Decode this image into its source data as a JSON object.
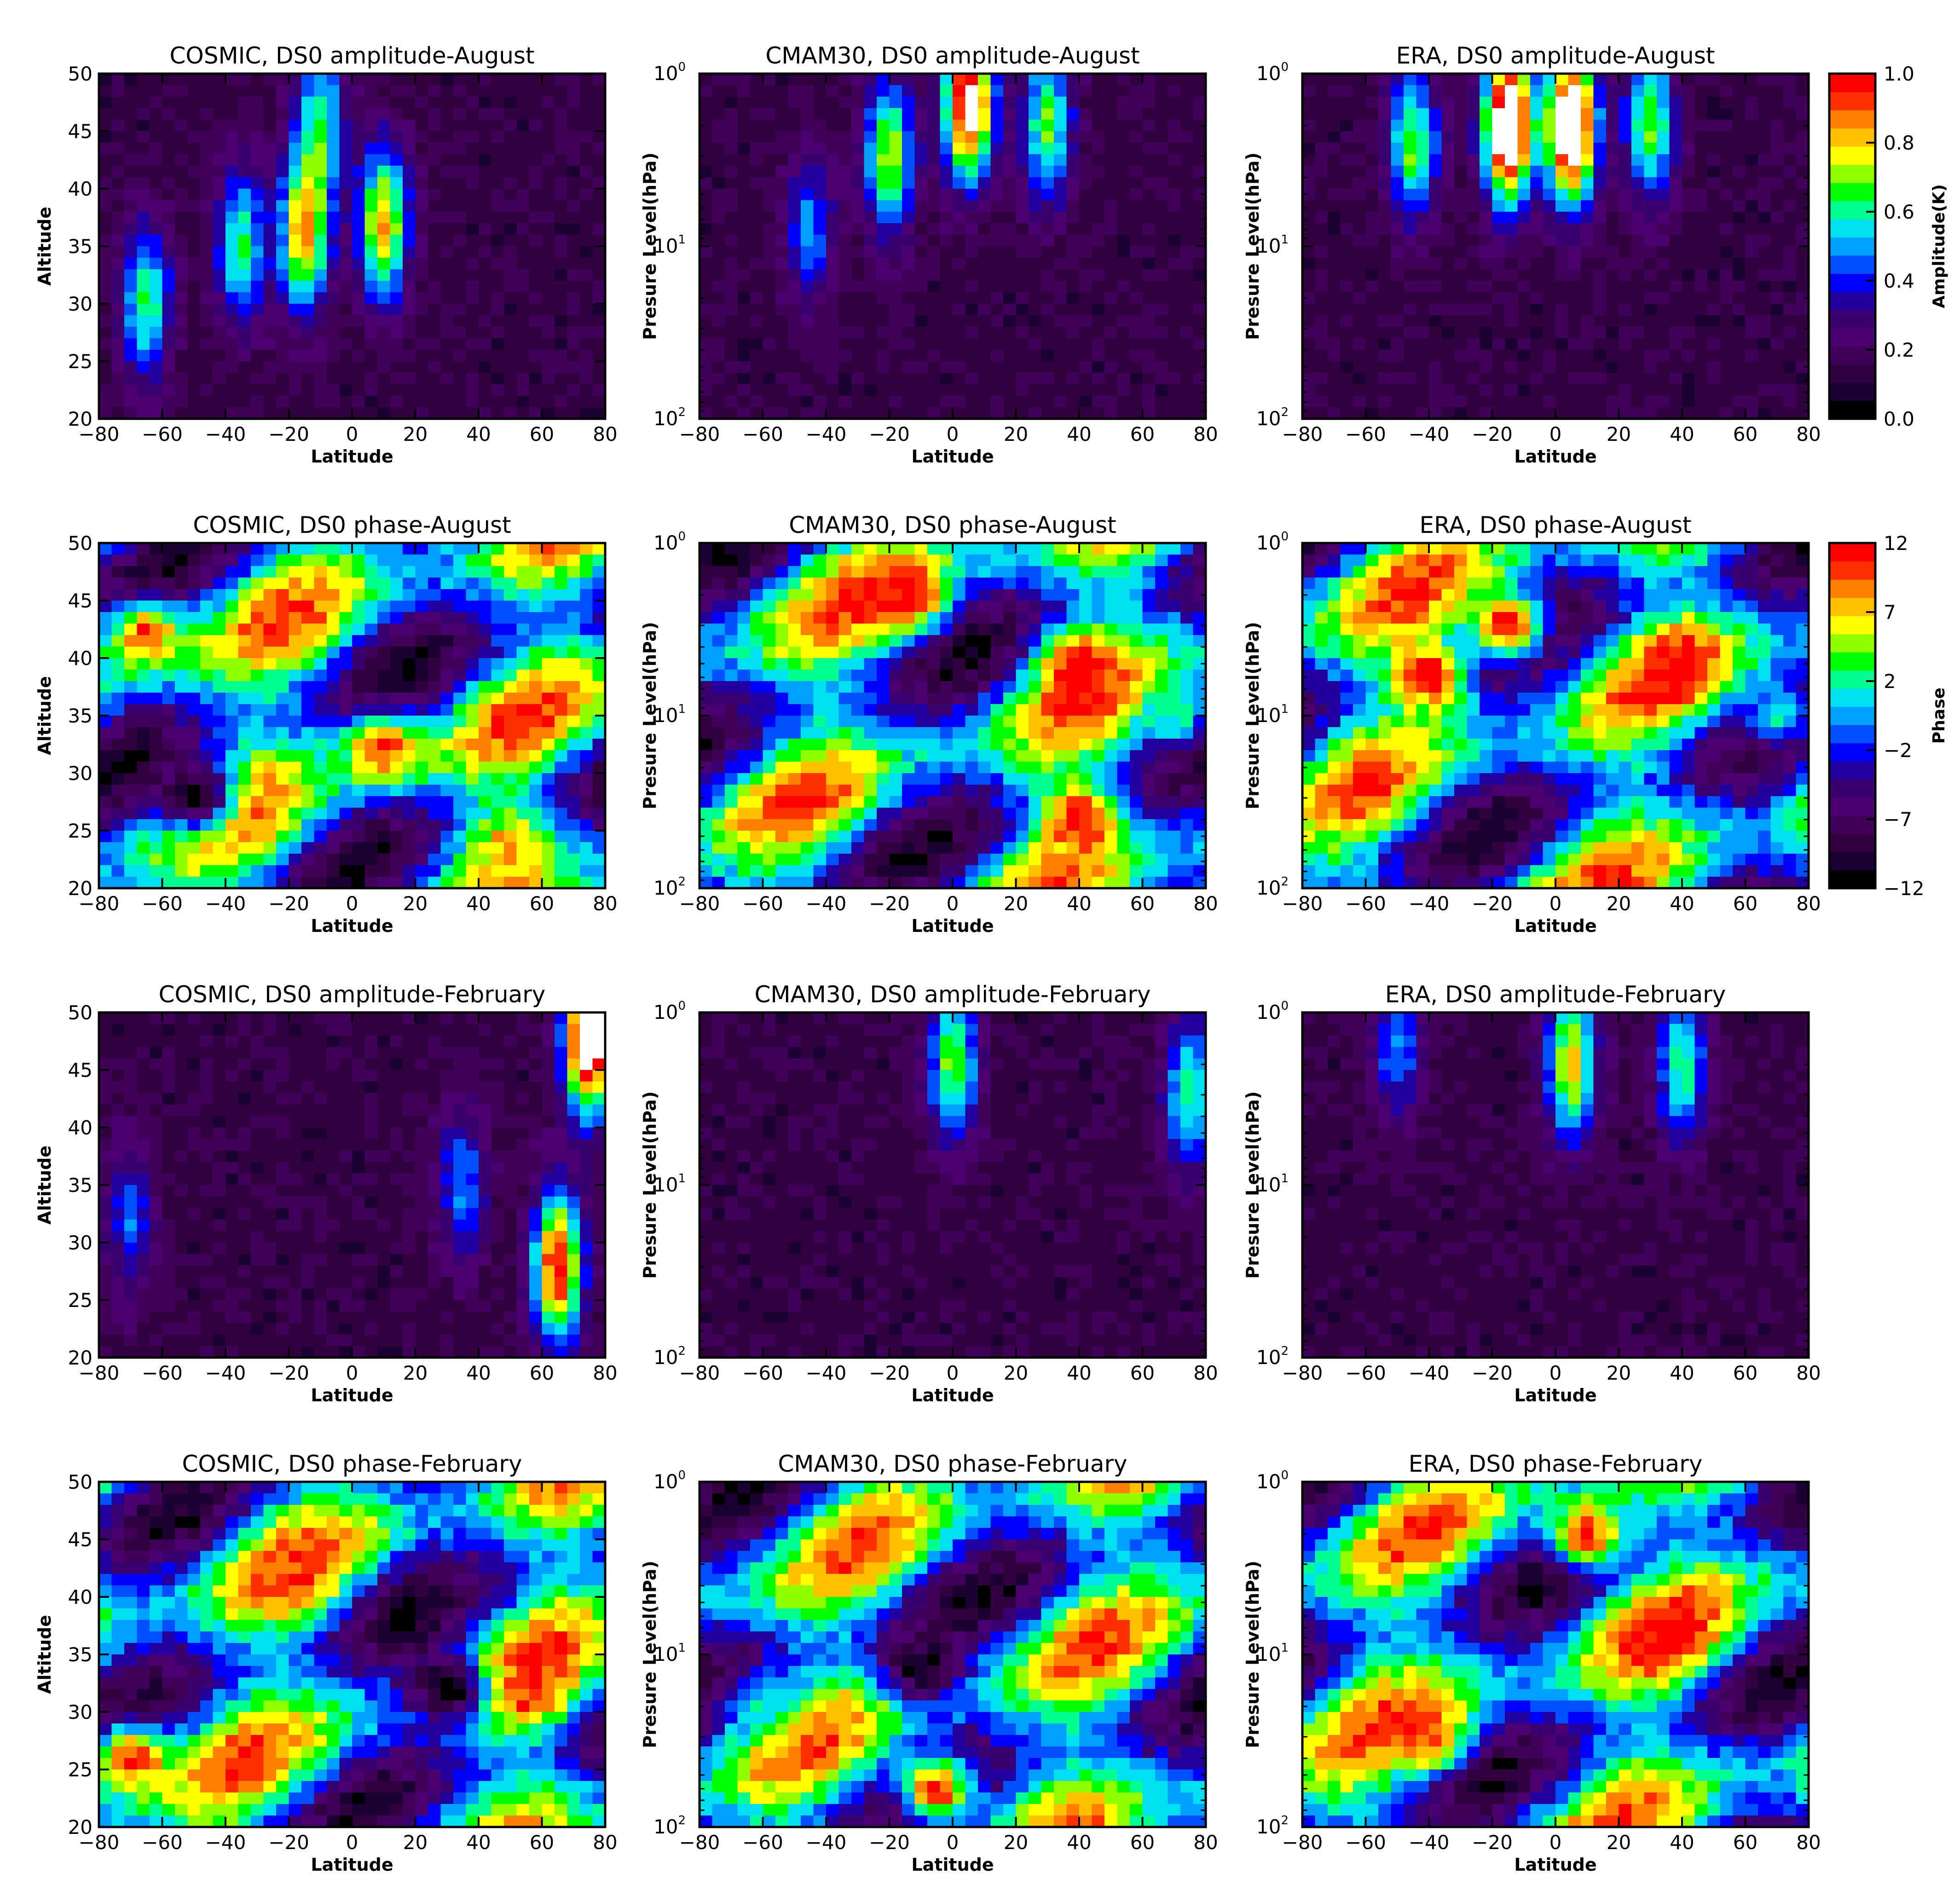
{
  "colormap": [
    "#000000",
    "#1a0033",
    "#33003f",
    "#40005a",
    "#4a006e",
    "#3a0070",
    "#2200a0",
    "#0000ff",
    "#0050ff",
    "#00a0ff",
    "#00e0f0",
    "#00ff90",
    "#00ff00",
    "#90ff00",
    "#ffff00",
    "#ffc000",
    "#ff8000",
    "#ff3000",
    "#ff0000"
  ],
  "axis_labels": {
    "latitude": "Latitude",
    "altitude": "Altitude",
    "pressure": "Presure Level(hPa)"
  },
  "colorbars": [
    {
      "label": "Amplitude(K)",
      "range": [
        0.0,
        1.0
      ],
      "ticks": [
        "0.0",
        "0.2",
        "0.4",
        "0.6",
        "0.8",
        "1.0"
      ]
    },
    {
      "label": "Phase",
      "range": [
        -12,
        12
      ],
      "ticks": [
        "-12",
        "-7",
        "-2",
        "2",
        "7",
        "12"
      ]
    }
  ],
  "chart_data": [
    {
      "type": "heatmap",
      "title": "COSMIC, DS0 amplitude-August",
      "xlabel": "Latitude",
      "ylabel": "Altitude",
      "xlim": [
        -80,
        80
      ],
      "ylim": [
        20,
        50
      ],
      "x_ticks": [
        "-80",
        "-60",
        "-40",
        "-20",
        "0",
        "20",
        "40",
        "60",
        "80"
      ],
      "y_ticks": [
        "20",
        "25",
        "30",
        "35",
        "40",
        "45",
        "50"
      ],
      "field": "amp",
      "features": [
        {
          "lat": -15,
          "y": 36,
          "value": 0.7
        },
        {
          "lat": 10,
          "y": 37,
          "value": 0.7
        },
        {
          "lat": -65,
          "y": 30,
          "value": 0.5
        },
        {
          "lat": -35,
          "y": 35,
          "value": 0.5
        },
        {
          "lat": -10,
          "y": 46,
          "value": 0.45
        }
      ]
    },
    {
      "type": "heatmap",
      "title": "CMAM30, DS0 amplitude-August",
      "xlabel": "Latitude",
      "ylabel": "Presure Level(hPa)",
      "xlim": [
        -80,
        80
      ],
      "ylim": [
        100,
        1
      ],
      "x_ticks": [
        "-80",
        "-60",
        "-40",
        "-20",
        "0",
        "20",
        "40",
        "60",
        "80"
      ],
      "y_ticks": [
        "10^2",
        "10^1",
        "10^0"
      ],
      "field": "amp",
      "features": [
        {
          "lat": 5,
          "y": 1.5,
          "value": 0.95
        },
        {
          "lat": -20,
          "y": 3,
          "value": 0.6
        },
        {
          "lat": 30,
          "y": 2,
          "value": 0.55
        },
        {
          "lat": -45,
          "y": 8,
          "value": 0.35
        }
      ]
    },
    {
      "type": "heatmap",
      "title": "ERA, DS0 amplitude-August",
      "xlabel": "Latitude",
      "ylabel": "Presure Level(hPa)",
      "xlim": [
        -80,
        80
      ],
      "ylim": [
        100,
        1
      ],
      "x_ticks": [
        "-80",
        "-60",
        "-40",
        "-20",
        "0",
        "20",
        "40",
        "60",
        "80"
      ],
      "y_ticks": [
        "10^2",
        "10^1",
        "10^0"
      ],
      "field": "amp",
      "features": [
        {
          "lat": -15,
          "y": 2,
          "value": 1.1
        },
        {
          "lat": 5,
          "y": 2,
          "value": 1.1
        },
        {
          "lat": 30,
          "y": 2,
          "value": 0.55
        },
        {
          "lat": -45,
          "y": 2.5,
          "value": 0.55
        }
      ]
    },
    {
      "type": "heatmap",
      "title": "COSMIC, DS0 phase-August",
      "xlabel": "Latitude",
      "ylabel": "Altitude",
      "xlim": [
        -80,
        80
      ],
      "ylim": [
        20,
        50
      ],
      "x_ticks": [
        "-80",
        "-60",
        "-40",
        "-20",
        "0",
        "20",
        "40",
        "60",
        "80"
      ],
      "y_ticks": [
        "20",
        "25",
        "30",
        "35",
        "40",
        "45",
        "50"
      ],
      "field": "phase",
      "features": [
        {
          "lat": 10,
          "y": 32,
          "value": 10
        },
        {
          "lat": -65,
          "y": 42,
          "value": 10
        },
        {
          "lat": 50,
          "y": 24,
          "value": 8
        },
        {
          "lat": -50,
          "y": 28,
          "value": -11
        }
      ]
    },
    {
      "type": "heatmap",
      "title": "CMAM30, DS0 phase-August",
      "xlabel": "Latitude",
      "ylabel": "Presure Level(hPa)",
      "xlim": [
        -80,
        80
      ],
      "ylim": [
        100,
        1
      ],
      "x_ticks": [
        "-80",
        "-60",
        "-40",
        "-20",
        "0",
        "20",
        "40",
        "60",
        "80"
      ],
      "y_ticks": [
        "10^2",
        "10^1",
        "10^0"
      ],
      "field": "phase",
      "features": [
        {
          "lat": 40,
          "y": 5,
          "value": 12
        },
        {
          "lat": 40,
          "y": 40,
          "value": 12
        },
        {
          "lat": -15,
          "y": 2,
          "value": 12
        },
        {
          "lat": 70,
          "y": 10,
          "value": 2
        }
      ]
    },
    {
      "type": "heatmap",
      "title": "ERA, DS0 phase-August",
      "xlabel": "Latitude",
      "ylabel": "Presure Level(hPa)",
      "xlim": [
        -80,
        80
      ],
      "ylim": [
        100,
        1
      ],
      "x_ticks": [
        "-80",
        "-60",
        "-40",
        "-20",
        "0",
        "20",
        "40",
        "60",
        "80"
      ],
      "y_ticks": [
        "10^2",
        "10^1",
        "10^0"
      ],
      "field": "phase",
      "features": [
        {
          "lat": -40,
          "y": 6,
          "value": 12
        },
        {
          "lat": 40,
          "y": 5,
          "value": 12
        },
        {
          "lat": -15,
          "y": 3,
          "value": 12
        },
        {
          "lat": 70,
          "y": 10,
          "value": 2
        }
      ]
    },
    {
      "type": "heatmap",
      "title": "COSMIC, DS0 amplitude-February",
      "xlabel": "Latitude",
      "ylabel": "Altitude",
      "xlim": [
        -80,
        80
      ],
      "ylim": [
        20,
        50
      ],
      "x_ticks": [
        "-80",
        "-60",
        "-40",
        "-20",
        "0",
        "20",
        "40",
        "60",
        "80"
      ],
      "y_ticks": [
        "20",
        "25",
        "30",
        "35",
        "40",
        "45",
        "50"
      ],
      "field": "amp",
      "features": [
        {
          "lat": 65,
          "y": 28,
          "value": 0.85
        },
        {
          "lat": 75,
          "y": 48,
          "value": 1.1
        },
        {
          "lat": 35,
          "y": 35,
          "value": 0.35
        },
        {
          "lat": -70,
          "y": 32,
          "value": 0.3
        }
      ]
    },
    {
      "type": "heatmap",
      "title": "CMAM30, DS0 amplitude-February",
      "xlabel": "Latitude",
      "ylabel": "Presure Level(hPa)",
      "xlim": [
        -80,
        80
      ],
      "ylim": [
        100,
        1
      ],
      "x_ticks": [
        "-80",
        "-60",
        "-40",
        "-20",
        "0",
        "20",
        "40",
        "60",
        "80"
      ],
      "y_ticks": [
        "10^2",
        "10^1",
        "10^0"
      ],
      "field": "amp",
      "features": [
        {
          "lat": 0,
          "y": 2,
          "value": 0.55
        },
        {
          "lat": 75,
          "y": 3,
          "value": 0.5
        },
        {
          "lat": -50,
          "y": 40,
          "value": 0.0
        }
      ]
    },
    {
      "type": "heatmap",
      "title": "ERA, DS0 amplitude-February",
      "xlabel": "Latitude",
      "ylabel": "Presure Level(hPa)",
      "xlim": [
        -80,
        80
      ],
      "ylim": [
        100,
        1
      ],
      "x_ticks": [
        "-80",
        "-60",
        "-40",
        "-20",
        "0",
        "20",
        "40",
        "60",
        "80"
      ],
      "y_ticks": [
        "10^2",
        "10^1",
        "10^0"
      ],
      "field": "amp",
      "features": [
        {
          "lat": 5,
          "y": 2,
          "value": 0.65
        },
        {
          "lat": 40,
          "y": 2,
          "value": 0.5
        },
        {
          "lat": -50,
          "y": 1.5,
          "value": 0.35
        }
      ]
    },
    {
      "type": "heatmap",
      "title": "COSMIC, DS0 phase-February",
      "xlabel": "Latitude",
      "ylabel": "Altitude",
      "xlim": [
        -80,
        80
      ],
      "ylim": [
        20,
        50
      ],
      "x_ticks": [
        "-80",
        "-60",
        "-40",
        "-20",
        "0",
        "20",
        "40",
        "60",
        "80"
      ],
      "y_ticks": [
        "20",
        "25",
        "30",
        "35",
        "40",
        "45",
        "50"
      ],
      "field": "phase",
      "features": [
        {
          "lat": -70,
          "y": 26,
          "value": 11
        },
        {
          "lat": 55,
          "y": 32,
          "value": 11
        },
        {
          "lat": -20,
          "y": 42,
          "value": 10
        },
        {
          "lat": 30,
          "y": 32,
          "value": -12
        }
      ]
    },
    {
      "type": "heatmap",
      "title": "CMAM30, DS0 phase-February",
      "xlabel": "Latitude",
      "ylabel": "Presure Level(hPa)",
      "xlim": [
        -80,
        80
      ],
      "ylim": [
        100,
        1
      ],
      "x_ticks": [
        "-80",
        "-60",
        "-40",
        "-20",
        "0",
        "20",
        "40",
        "60",
        "80"
      ],
      "y_ticks": [
        "10^2",
        "10^1",
        "10^0"
      ],
      "field": "phase",
      "features": [
        {
          "lat": -10,
          "y": 12,
          "value": -11
        },
        {
          "lat": -5,
          "y": 60,
          "value": 11
        },
        {
          "lat": -60,
          "y": 20,
          "value": 2
        }
      ]
    },
    {
      "type": "heatmap",
      "title": "ERA, DS0 phase-February",
      "xlabel": "Latitude",
      "ylabel": "Presure Level(hPa)",
      "xlim": [
        -80,
        80
      ],
      "ylim": [
        100,
        1
      ],
      "x_ticks": [
        "-80",
        "-60",
        "-40",
        "-20",
        "0",
        "20",
        "40",
        "60",
        "80"
      ],
      "y_ticks": [
        "10^2",
        "10^1",
        "10^0"
      ],
      "field": "phase",
      "features": [
        {
          "lat": 35,
          "y": 8,
          "value": 12
        },
        {
          "lat": 10,
          "y": 2,
          "value": 11
        },
        {
          "lat": -40,
          "y": 30,
          "value": 10
        }
      ]
    }
  ]
}
